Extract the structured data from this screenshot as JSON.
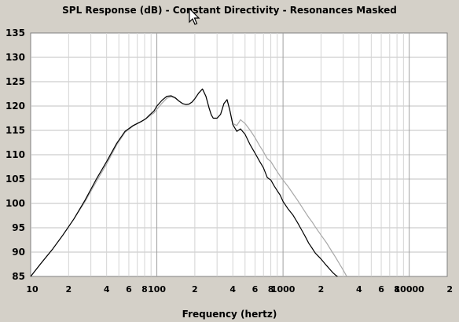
{
  "chart_data": {
    "type": "line",
    "title": "SPL Response (dB) - Constant Directivity - Resonances Masked",
    "xlabel": "Frequency (hertz)",
    "ylabel": "",
    "x_scale": "log",
    "xlim": [
      10,
      20000
    ],
    "ylim": [
      85,
      135
    ],
    "grid": true,
    "y_ticks": [
      "135",
      "130",
      "125",
      "120",
      "115",
      "110",
      "105",
      "100",
      "95",
      "90",
      "85"
    ],
    "x_ticks": [
      {
        "f": 10,
        "label": "10"
      },
      {
        "f": 20,
        "label": "2"
      },
      {
        "f": 40,
        "label": "4"
      },
      {
        "f": 60,
        "label": "6"
      },
      {
        "f": 80,
        "label": "8"
      },
      {
        "f": 100,
        "label": "100"
      },
      {
        "f": 200,
        "label": "2"
      },
      {
        "f": 400,
        "label": "4"
      },
      {
        "f": 600,
        "label": "6"
      },
      {
        "f": 800,
        "label": "8"
      },
      {
        "f": 1000,
        "label": "1000"
      },
      {
        "f": 2000,
        "label": "2"
      },
      {
        "f": 4000,
        "label": "4"
      },
      {
        "f": 6000,
        "label": "6"
      },
      {
        "f": 8000,
        "label": "8"
      },
      {
        "f": 10000,
        "label": "10000"
      },
      {
        "f": 20000,
        "label": "2"
      }
    ],
    "series": [
      {
        "color": "#000000",
        "x": [
          10,
          12,
          15,
          18,
          22,
          27,
          33,
          40,
          48,
          56,
          65,
          75,
          82,
          88,
          95,
          100,
          110,
          120,
          130,
          140,
          150,
          160,
          170,
          180,
          190,
          200,
          215,
          230,
          245,
          260,
          270,
          280,
          300,
          320,
          340,
          360,
          380,
          400,
          430,
          460,
          500,
          550,
          600,
          650,
          700,
          750,
          800,
          850,
          900,
          950,
          1000,
          1100,
          1200,
          1300,
          1400,
          1500,
          1600,
          1700,
          1800,
          2000,
          2200,
          2400,
          2500,
          2600,
          2700
        ],
        "y": [
          85.0,
          87.6,
          90.7,
          93.5,
          96.8,
          100.7,
          104.9,
          108.6,
          112.3,
          114.8,
          116.0,
          116.8,
          117.4,
          118.2,
          119.0,
          120.0,
          121.2,
          122.0,
          122.1,
          121.7,
          121.0,
          120.5,
          120.3,
          120.4,
          120.8,
          121.5,
          122.7,
          123.5,
          122.0,
          119.5,
          118.2,
          117.5,
          117.5,
          118.3,
          120.5,
          121.3,
          119.0,
          116.2,
          114.8,
          115.3,
          114.2,
          112.0,
          110.3,
          108.7,
          107.3,
          105.3,
          104.8,
          103.6,
          102.6,
          101.7,
          100.4,
          98.8,
          97.6,
          96.1,
          94.6,
          93.2,
          91.8,
          90.8,
          89.8,
          88.6,
          87.3,
          86.2,
          85.7,
          85.3,
          85.0
        ]
      },
      {
        "color": "#a8a8a8",
        "x": [
          10,
          12,
          15,
          18,
          22,
          27,
          33,
          40,
          48,
          56,
          65,
          75,
          82,
          88,
          95,
          100,
          110,
          120,
          130,
          140,
          150,
          160,
          170,
          180,
          190,
          200,
          215,
          230,
          245,
          260,
          270,
          280,
          300,
          320,
          340,
          360,
          380,
          400,
          430,
          460,
          500,
          550,
          600,
          650,
          700,
          750,
          800,
          850,
          900,
          950,
          1000,
          1100,
          1200,
          1300,
          1400,
          1500,
          1600,
          1700,
          1800,
          2000,
          2200,
          2400,
          2600,
          2800,
          3000,
          3200
        ],
        "y": [
          85.0,
          87.6,
          90.7,
          93.5,
          96.8,
          100.4,
          104.4,
          108.1,
          112.0,
          114.6,
          115.9,
          116.8,
          117.4,
          118.0,
          118.6,
          119.3,
          120.6,
          121.6,
          121.9,
          121.6,
          121.0,
          120.5,
          120.3,
          120.4,
          120.8,
          121.5,
          122.7,
          123.5,
          122.0,
          119.5,
          118.2,
          117.5,
          117.5,
          118.3,
          120.5,
          121.3,
          119.0,
          116.4,
          116.0,
          117.2,
          116.4,
          115.0,
          113.5,
          111.9,
          110.6,
          109.2,
          108.6,
          107.5,
          106.5,
          105.6,
          104.8,
          103.4,
          102.0,
          100.7,
          99.4,
          98.2,
          97.1,
          96.2,
          95.2,
          93.5,
          92.0,
          90.4,
          89.0,
          87.6,
          86.3,
          85.0
        ]
      }
    ]
  }
}
